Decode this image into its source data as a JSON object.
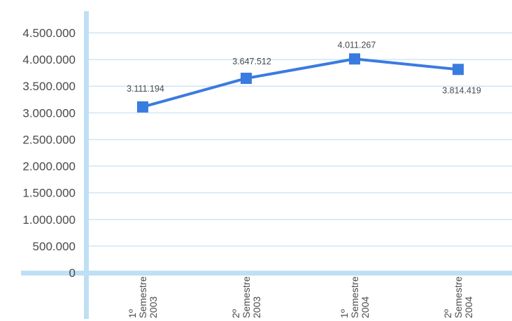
{
  "chart_data": {
    "type": "line",
    "title": "",
    "xlabel": "",
    "ylabel": "",
    "categories": [
      [
        "1º",
        "Semestre",
        "2003"
      ],
      [
        "2º",
        "Semestre",
        "2003"
      ],
      [
        "1º",
        "Semestre",
        "2004"
      ],
      [
        "2º",
        "Semestre",
        "2004"
      ]
    ],
    "series": [
      {
        "values": [
          3111194,
          3647512,
          4011267,
          3814419
        ]
      }
    ],
    "data_labels": [
      "3.111.194",
      "3.647.512",
      "4.011.267",
      "3.814.419"
    ],
    "y_ticks": [
      0,
      500000,
      1000000,
      1500000,
      2000000,
      2500000,
      3000000,
      3500000,
      4000000,
      4500000
    ],
    "y_tick_labels": [
      "0",
      "500.000",
      "1.000.000",
      "1.500.000",
      "2.000.000",
      "2.500.000",
      "3.000.000",
      "3.500.000",
      "4.000.000",
      "4.500.000"
    ],
    "ylim": [
      0,
      4500000
    ],
    "grid": true,
    "legend": "none",
    "colors": {
      "line": "#3a7be0",
      "marker": "#3a7be0",
      "grid": "#cfe6f6",
      "axis": "#bfe0f4",
      "text": "#4a4a4a"
    }
  }
}
